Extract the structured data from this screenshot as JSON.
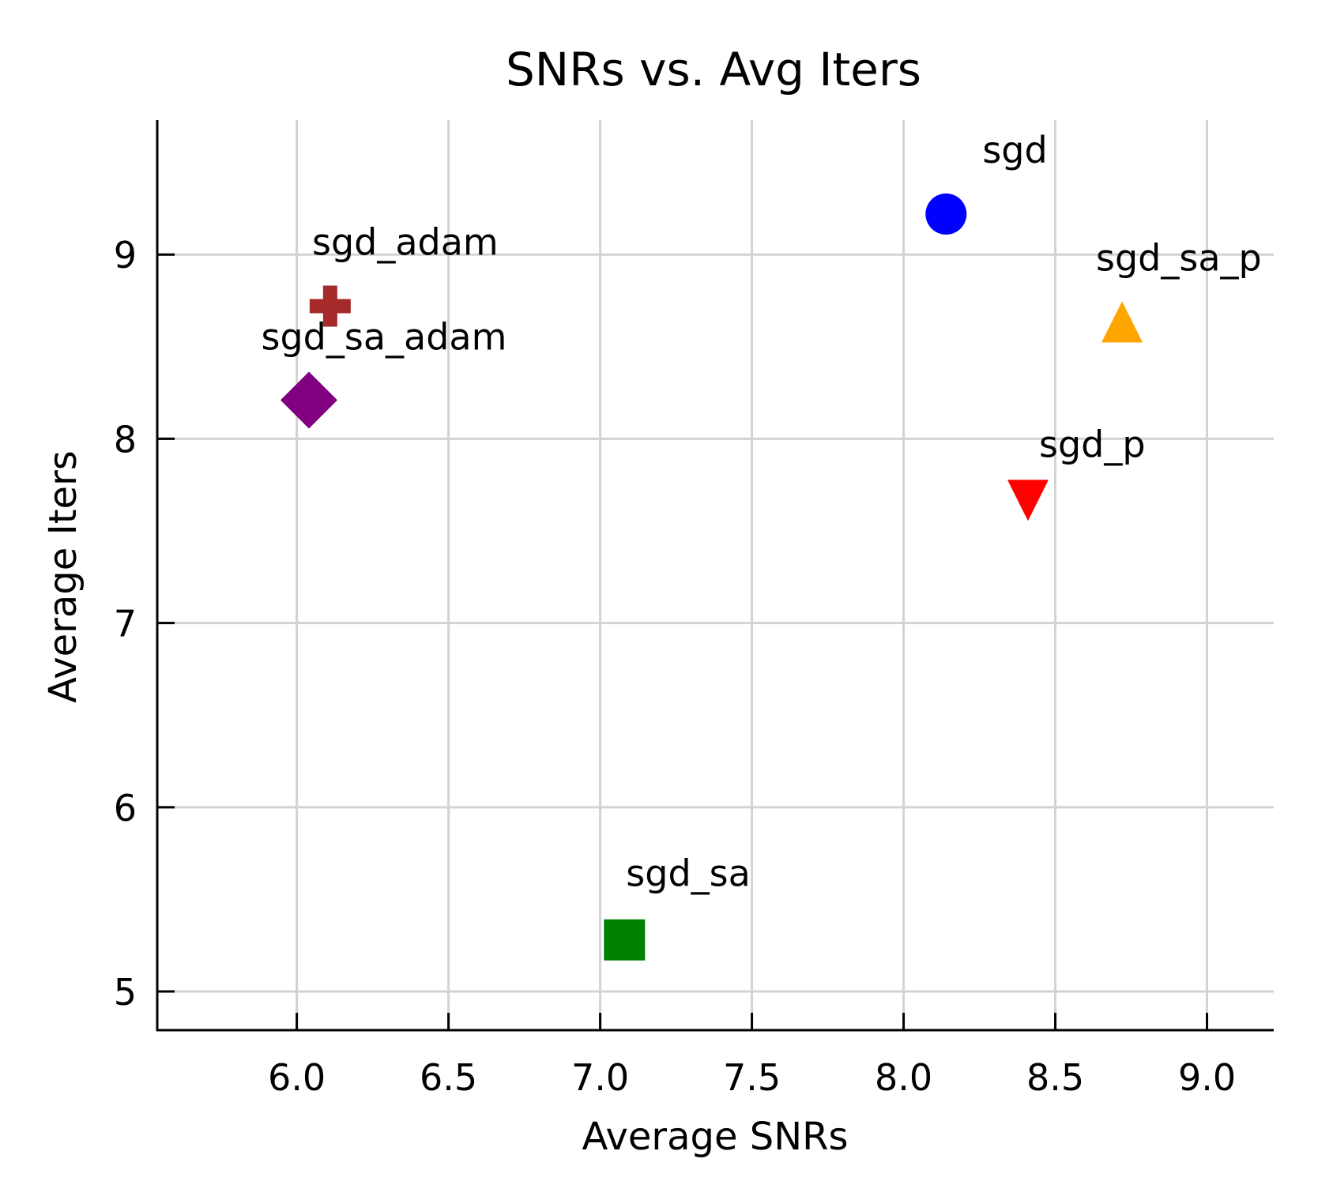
{
  "chart_data": {
    "type": "scatter",
    "title": "SNRs vs. Avg Iters",
    "xlabel": "Average SNRs",
    "ylabel": "Average Iters",
    "xlim": [
      5.54,
      9.22
    ],
    "ylim": [
      4.79,
      9.73
    ],
    "grid": true,
    "x_ticks": [
      6.0,
      6.5,
      7.0,
      7.5,
      8.0,
      8.5,
      9.0
    ],
    "x_tick_labels": [
      "6.0",
      "6.5",
      "7.0",
      "7.5",
      "8.0",
      "8.5",
      "9.0"
    ],
    "y_ticks": [
      5,
      6,
      7,
      8,
      9
    ],
    "y_tick_labels": [
      "5",
      "6",
      "7",
      "8",
      "9"
    ],
    "points": [
      {
        "label": "sgd",
        "x": 8.14,
        "y": 9.22,
        "marker": "circle",
        "color": "#0000ff"
      },
      {
        "label": "sgd_p",
        "x": 8.41,
        "y": 7.67,
        "marker": "triangle-down",
        "color": "#ff0000"
      },
      {
        "label": "sgd_sa",
        "x": 7.08,
        "y": 5.28,
        "marker": "square",
        "color": "#008000"
      },
      {
        "label": "sgd_sa_p",
        "x": 8.72,
        "y": 8.63,
        "marker": "triangle-up",
        "color": "#ffa500"
      },
      {
        "label": "sgd_adam",
        "x": 6.11,
        "y": 8.72,
        "marker": "plus",
        "color": "#a52a2a"
      },
      {
        "label": "sgd_sa_adam",
        "x": 6.04,
        "y": 8.21,
        "marker": "diamond",
        "color": "#800080"
      }
    ]
  }
}
